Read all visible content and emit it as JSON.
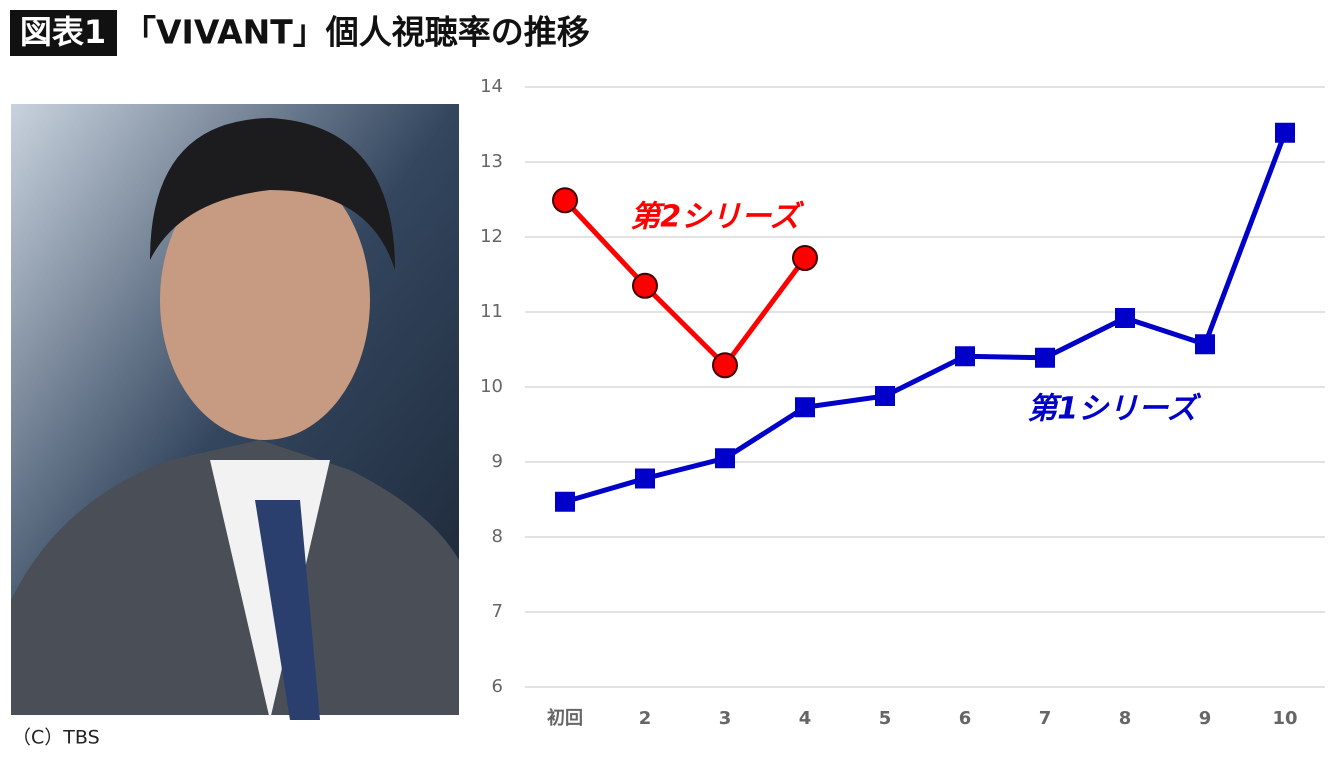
{
  "chart_data": {
    "type": "line",
    "figure_label": "図表1",
    "title": "「VIVANT」個人視聴率の推移",
    "credit": "（C）TBS",
    "categories": [
      "初回",
      "2",
      "3",
      "4",
      "5",
      "6",
      "7",
      "8",
      "9",
      "10"
    ],
    "series": [
      {
        "name": "第1シリーズ",
        "color": "#0000c8",
        "marker": "square",
        "values": [
          8.47,
          8.78,
          9.05,
          9.73,
          9.88,
          10.41,
          10.39,
          10.92,
          10.57,
          13.39
        ]
      },
      {
        "name": "第2シリーズ",
        "color": "#ff0000",
        "marker": "circle",
        "values": [
          12.49,
          11.35,
          10.29,
          11.72,
          null,
          null,
          null,
          null,
          null,
          null
        ]
      }
    ],
    "ylim": [
      6,
      14
    ],
    "yticks": [
      6,
      7,
      8,
      9,
      10,
      11,
      12,
      13,
      14
    ],
    "grid": true
  }
}
